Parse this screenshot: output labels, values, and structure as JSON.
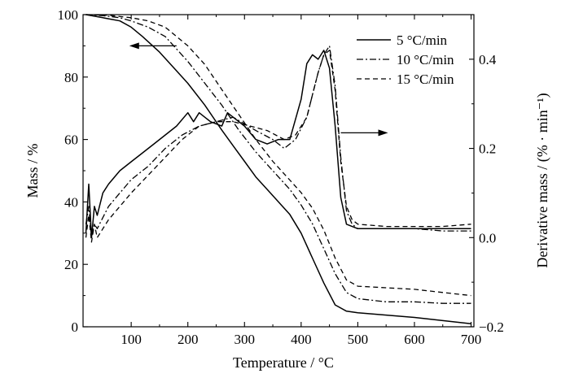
{
  "chart_data": {
    "type": "line",
    "xlabel": "Temperature / °C",
    "ylabel_left": "Mass / %",
    "ylabel_right": "Derivative mass / (% · min⁻¹)",
    "xlim": [
      15,
      705
    ],
    "ylim_left": [
      0,
      100
    ],
    "ylim_right": [
      -0.2,
      0.5
    ],
    "xticks": [
      "100",
      "200",
      "300",
      "400",
      "500",
      "600",
      "700"
    ],
    "yticks_left": [
      "0",
      "20",
      "40",
      "60",
      "80",
      "100"
    ],
    "yticks_right": [
      "−0.2",
      "0.0",
      "0.2",
      "0.4"
    ],
    "grid": false,
    "legend_position": "top-right",
    "legend": [
      "5 °C/min",
      "10 °C/min",
      "15 °C/min"
    ],
    "mass_series": [
      {
        "name": "5 °C/min",
        "style": "solid",
        "x": [
          20,
          50,
          80,
          100,
          120,
          150,
          180,
          200,
          230,
          260,
          280,
          300,
          320,
          340,
          360,
          380,
          400,
          420,
          440,
          460,
          480,
          500,
          600,
          700
        ],
        "y": [
          100,
          99,
          98,
          96,
          93,
          88,
          82,
          78,
          71,
          63,
          58,
          53,
          48,
          44,
          40,
          36,
          30,
          22,
          14,
          7,
          5,
          4.5,
          3,
          1
        ]
      },
      {
        "name": "10 °C/min",
        "style": "dashdot",
        "x": [
          20,
          50,
          80,
          100,
          130,
          160,
          200,
          230,
          260,
          290,
          320,
          350,
          380,
          400,
          420,
          440,
          460,
          480,
          500,
          550,
          600,
          650,
          700
        ],
        "y": [
          100,
          99.7,
          99,
          98,
          96,
          93,
          85,
          78,
          71,
          63,
          56,
          50,
          44,
          39,
          33,
          25,
          17,
          11,
          9,
          8,
          8,
          7.5,
          7.5
        ]
      },
      {
        "name": "15 °C/min",
        "style": "dashed",
        "x": [
          20,
          60,
          100,
          130,
          160,
          200,
          230,
          260,
          290,
          320,
          350,
          380,
          400,
          420,
          440,
          460,
          480,
          500,
          550,
          600,
          650,
          700
        ],
        "y": [
          100,
          99.8,
          99,
          98,
          96,
          90,
          84,
          76,
          68,
          60,
          53,
          47,
          43,
          38,
          31,
          22,
          15,
          13,
          12.5,
          12,
          11,
          10
        ]
      }
    ],
    "derivative_series": [
      {
        "name": "5 °C/min",
        "style": "solid",
        "x": [
          20,
          25,
          30,
          35,
          40,
          50,
          60,
          80,
          100,
          120,
          140,
          160,
          180,
          200,
          210,
          220,
          240,
          260,
          270,
          280,
          300,
          320,
          340,
          360,
          380,
          400,
          410,
          420,
          430,
          440,
          450,
          460,
          470,
          480,
          490,
          500,
          550,
          600,
          650,
          700
        ],
        "y": [
          0.01,
          0.12,
          0.0,
          0.07,
          0.05,
          0.1,
          0.12,
          0.15,
          0.17,
          0.19,
          0.21,
          0.23,
          0.25,
          0.28,
          0.26,
          0.28,
          0.26,
          0.25,
          0.28,
          0.27,
          0.25,
          0.22,
          0.21,
          0.22,
          0.22,
          0.31,
          0.39,
          0.41,
          0.4,
          0.42,
          0.38,
          0.25,
          0.09,
          0.03,
          0.025,
          0.02,
          0.02,
          0.02,
          0.02,
          0.02
        ]
      },
      {
        "name": "10 °C/min",
        "style": "dashdot",
        "x": [
          20,
          25,
          30,
          35,
          40,
          60,
          80,
          100,
          130,
          160,
          190,
          220,
          250,
          280,
          300,
          320,
          350,
          370,
          390,
          410,
          420,
          430,
          440,
          450,
          460,
          470,
          480,
          490,
          500,
          550,
          600,
          650,
          700
        ],
        "y": [
          0.03,
          0.07,
          0.0,
          0.03,
          0.02,
          0.07,
          0.1,
          0.13,
          0.16,
          0.2,
          0.23,
          0.25,
          0.26,
          0.27,
          0.255,
          0.24,
          0.22,
          0.2,
          0.22,
          0.27,
          0.32,
          0.37,
          0.41,
          0.43,
          0.34,
          0.18,
          0.06,
          0.03,
          0.02,
          0.02,
          0.02,
          0.015,
          0.015
        ]
      },
      {
        "name": "15 °C/min",
        "style": "dashed",
        "x": [
          20,
          25,
          30,
          35,
          40,
          60,
          80,
          100,
          130,
          160,
          190,
          220,
          250,
          280,
          310,
          340,
          370,
          390,
          410,
          420,
          430,
          440,
          450,
          460,
          470,
          480,
          490,
          500,
          550,
          600,
          650,
          700
        ],
        "y": [
          0.0,
          0.05,
          -0.01,
          0.03,
          0.0,
          0.04,
          0.07,
          0.1,
          0.14,
          0.18,
          0.22,
          0.25,
          0.26,
          0.26,
          0.25,
          0.24,
          0.22,
          0.23,
          0.27,
          0.32,
          0.37,
          0.41,
          0.42,
          0.33,
          0.17,
          0.07,
          0.04,
          0.03,
          0.025,
          0.025,
          0.025,
          0.03
        ]
      }
    ],
    "annotations": [
      {
        "type": "arrow",
        "direction": "left",
        "points_to": "left-axis",
        "x": 180,
        "y": 90
      },
      {
        "type": "arrow",
        "direction": "right",
        "points_to": "right-axis",
        "x": 470,
        "y": 0.235
      }
    ]
  }
}
